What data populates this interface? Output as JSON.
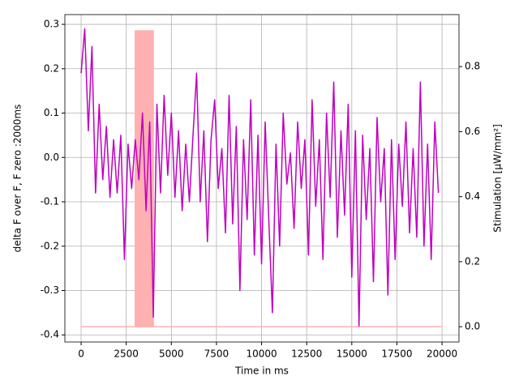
{
  "chart_data": {
    "type": "line",
    "xlabel": "Time in ms",
    "ylabel": "delta F over F, F zero :2000ms",
    "y2label": "Stimulation [μW/mm²]",
    "xlim": [
      -900,
      20940
    ],
    "ylim": [
      -0.416,
      0.322
    ],
    "y2lim": [
      -0.047,
      0.96
    ],
    "xticks": [
      0,
      2500,
      5000,
      7500,
      10000,
      12500,
      15000,
      17500,
      20000
    ],
    "yticks": [
      -0.4,
      -0.3,
      -0.2,
      -0.1,
      {
        "value": 0,
        "label": "0.0"
      },
      0.1,
      0.2,
      0.3
    ],
    "y2ticks": [
      {
        "value": 0,
        "label": "0.0"
      },
      0.2,
      0.4,
      0.6,
      0.8
    ],
    "grid": true,
    "series": [
      {
        "name": "Stimulation",
        "axis": "y2",
        "color": "#ffb0b0",
        "fill": true,
        "x": [
          0,
          3000,
          3000,
          4000,
          4000,
          20000
        ],
        "values": [
          0,
          0,
          0.91,
          0.91,
          0,
          0
        ]
      },
      {
        "name": "dF/F",
        "color": "#bf00bf",
        "x": [
          0,
          200,
          400,
          600,
          800,
          1000,
          1200,
          1400,
          1600,
          1800,
          2000,
          2200,
          2400,
          2600,
          2800,
          3000,
          3200,
          3400,
          3600,
          3800,
          4000,
          4200,
          4400,
          4600,
          4800,
          5000,
          5200,
          5400,
          5600,
          5800,
          6000,
          6200,
          6400,
          6600,
          6800,
          7000,
          7200,
          7400,
          7600,
          7800,
          8000,
          8200,
          8400,
          8600,
          8800,
          9000,
          9200,
          9400,
          9600,
          9800,
          10000,
          10200,
          10400,
          10600,
          10800,
          11000,
          11200,
          11400,
          11600,
          11800,
          12000,
          12200,
          12400,
          12600,
          12800,
          13000,
          13200,
          13400,
          13600,
          13800,
          14000,
          14200,
          14400,
          14600,
          14800,
          15000,
          15200,
          15400,
          15600,
          15800,
          16000,
          16200,
          16400,
          16600,
          16800,
          17000,
          17200,
          17400,
          17600,
          17800,
          18000,
          18200,
          18400,
          18600,
          18800,
          19000,
          19200,
          19400,
          19600,
          19800
        ],
        "values": [
          0.19,
          0.29,
          0.06,
          0.25,
          -0.08,
          0.12,
          -0.05,
          0.07,
          -0.09,
          0.04,
          -0.08,
          0.05,
          -0.23,
          0.03,
          -0.07,
          0.04,
          -0.05,
          0.1,
          -0.12,
          0.08,
          -0.36,
          0.12,
          -0.08,
          0.14,
          -0.04,
          0.1,
          -0.09,
          0.06,
          -0.12,
          0.03,
          -0.1,
          0.05,
          0.19,
          -0.1,
          0.06,
          -0.19,
          0.04,
          0.13,
          -0.07,
          0.02,
          -0.17,
          0.14,
          -0.15,
          0.07,
          -0.3,
          0.04,
          -0.14,
          0.13,
          -0.22,
          0.05,
          -0.24,
          0.08,
          -0.14,
          -0.35,
          0.03,
          -0.2,
          0.1,
          -0.06,
          0.01,
          -0.16,
          0.08,
          -0.07,
          0.04,
          -0.22,
          0.13,
          -0.11,
          0.04,
          -0.23,
          0.1,
          -0.09,
          0.17,
          -0.18,
          0.06,
          -0.13,
          0.12,
          -0.27,
          0.06,
          -0.38,
          0.05,
          -0.14,
          0.02,
          -0.28,
          0.09,
          -0.1,
          0.02,
          -0.31,
          0.04,
          -0.23,
          0.03,
          -0.11,
          0.08,
          -0.17,
          0.02,
          -0.18,
          0.17,
          -0.2,
          0.03,
          -0.23,
          0.08,
          -0.08
        ]
      }
    ]
  }
}
